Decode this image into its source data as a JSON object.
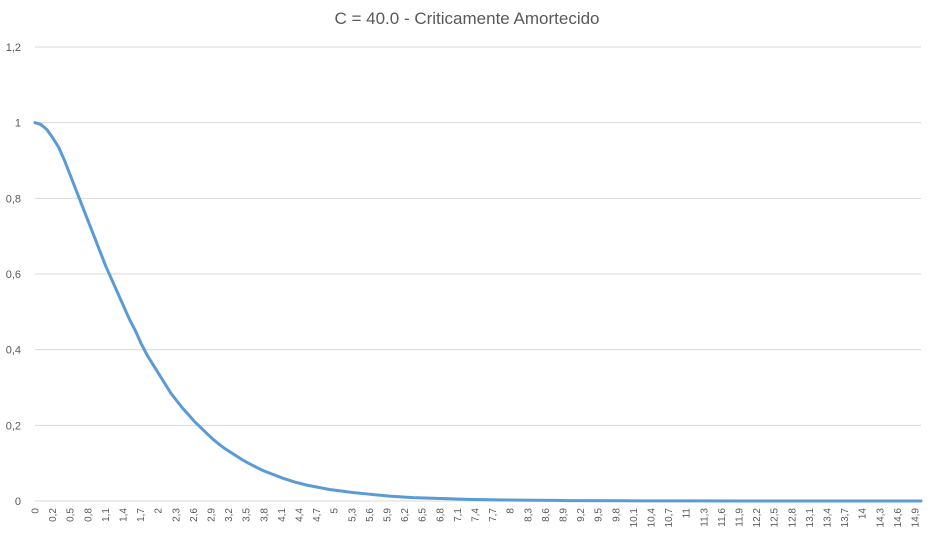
{
  "chart_data": {
    "type": "line",
    "title": "C = 40.0 - Criticamente Amortecido",
    "xlabel": "",
    "ylabel": "",
    "ylim": [
      0,
      1.2
    ],
    "y_ticks": [
      "0",
      "0,2",
      "0,4",
      "0,6",
      "0,8",
      "1",
      "1,2"
    ],
    "x_tick_labels": [
      "0",
      "0,2",
      "0,5",
      "0,8",
      "1,1",
      "1,4",
      "1,7",
      "2",
      "2,3",
      "2,6",
      "2,9",
      "3,2",
      "3,5",
      "3,8",
      "4,1",
      "4,4",
      "4,7",
      "5",
      "5,3",
      "5,6",
      "5,9",
      "6,2",
      "6,5",
      "6,8",
      "7,1",
      "7,4",
      "7,7",
      "8",
      "8,3",
      "8,6",
      "8,9",
      "9,2",
      "9,5",
      "9,8",
      "10,1",
      "10,4",
      "10,7",
      "11",
      "11,3",
      "11,6",
      "11,9",
      "12,2",
      "12,5",
      "12,8",
      "13,1",
      "13,4",
      "13,7",
      "14",
      "14,3",
      "14,6",
      "14,9"
    ],
    "grid": true,
    "legend": "none",
    "series_color": "#5b9bd5",
    "series": [
      {
        "name": "",
        "x": [
          0,
          0.1,
          0.2,
          0.3,
          0.4,
          0.5,
          0.6,
          0.7,
          0.8,
          0.9,
          1.0,
          1.1,
          1.2,
          1.3,
          1.4,
          1.5,
          1.6,
          1.7,
          1.8,
          1.9,
          2.0,
          2.1,
          2.2,
          2.3,
          2.4,
          2.5,
          2.6,
          2.7,
          2.8,
          2.9,
          3.0,
          3.1,
          3.2,
          3.3,
          3.4,
          3.5,
          3.6,
          3.7,
          3.8,
          3.9,
          4.0,
          4.1,
          4.2,
          4.3,
          4.4,
          4.5,
          4.6,
          4.7,
          4.8,
          4.9,
          5.0,
          5.2,
          5.4,
          5.6,
          5.8,
          6.0,
          6.2,
          6.4,
          6.6,
          6.8,
          7.0,
          7.2,
          7.4,
          7.6,
          7.8,
          8.0,
          8.4,
          8.8,
          9.0,
          10.0,
          11.0,
          12.0,
          13.0,
          14.0,
          15.0
        ],
        "values": [
          1.0,
          0.995,
          0.982,
          0.96,
          0.935,
          0.9,
          0.86,
          0.82,
          0.78,
          0.74,
          0.7,
          0.66,
          0.62,
          0.585,
          0.55,
          0.515,
          0.48,
          0.45,
          0.415,
          0.385,
          0.36,
          0.335,
          0.31,
          0.285,
          0.265,
          0.245,
          0.228,
          0.21,
          0.195,
          0.18,
          0.165,
          0.152,
          0.14,
          0.13,
          0.12,
          0.11,
          0.101,
          0.093,
          0.085,
          0.078,
          0.072,
          0.066,
          0.06,
          0.055,
          0.05,
          0.046,
          0.042,
          0.039,
          0.036,
          0.033,
          0.03,
          0.026,
          0.022,
          0.019,
          0.016,
          0.013,
          0.011,
          0.009,
          0.008,
          0.007,
          0.006,
          0.005,
          0.004,
          0.0035,
          0.003,
          0.0025,
          0.002,
          0.0015,
          0.001,
          0.0005,
          0.0002,
          0.0001,
          0.0,
          0.0,
          0.0
        ]
      }
    ]
  }
}
